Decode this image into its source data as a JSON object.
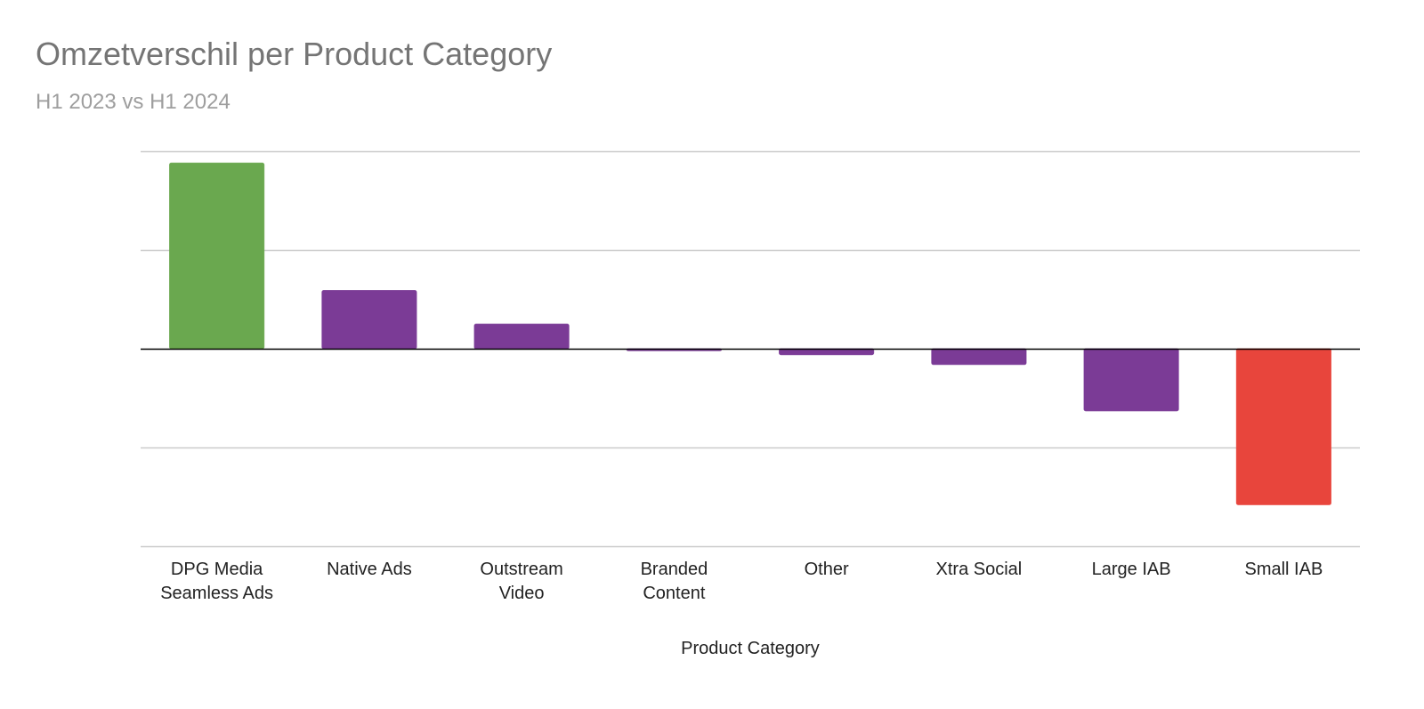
{
  "chart_data": {
    "type": "bar",
    "title": "Omzetverschil per Product Category",
    "subtitle": "H1 2023 vs H1 2024",
    "xlabel": "Product Category",
    "ylabel": "",
    "categories": [
      [
        "DPG Media",
        "Seamless Ads"
      ],
      [
        "Native Ads"
      ],
      [
        "Outstream",
        "Video"
      ],
      [
        "Branded",
        "Content"
      ],
      [
        "Other"
      ],
      [
        "Xtra Social"
      ],
      [
        "Large IAB"
      ],
      [
        "Small IAB"
      ]
    ],
    "values": [
      1.88,
      0.59,
      0.25,
      -0.02,
      -0.06,
      -0.16,
      -0.63,
      -1.58
    ],
    "ylim": [
      -2,
      2
    ],
    "gridlines": [
      2,
      1,
      0,
      -1,
      -2
    ],
    "y_tick_labels_visible": false,
    "grid": true,
    "legend": "none",
    "colors": {
      "max": "#6aa84f",
      "min": "#e8453c",
      "default": "#7b3b96",
      "grid": "#cccccc",
      "zero": "#000000"
    }
  }
}
